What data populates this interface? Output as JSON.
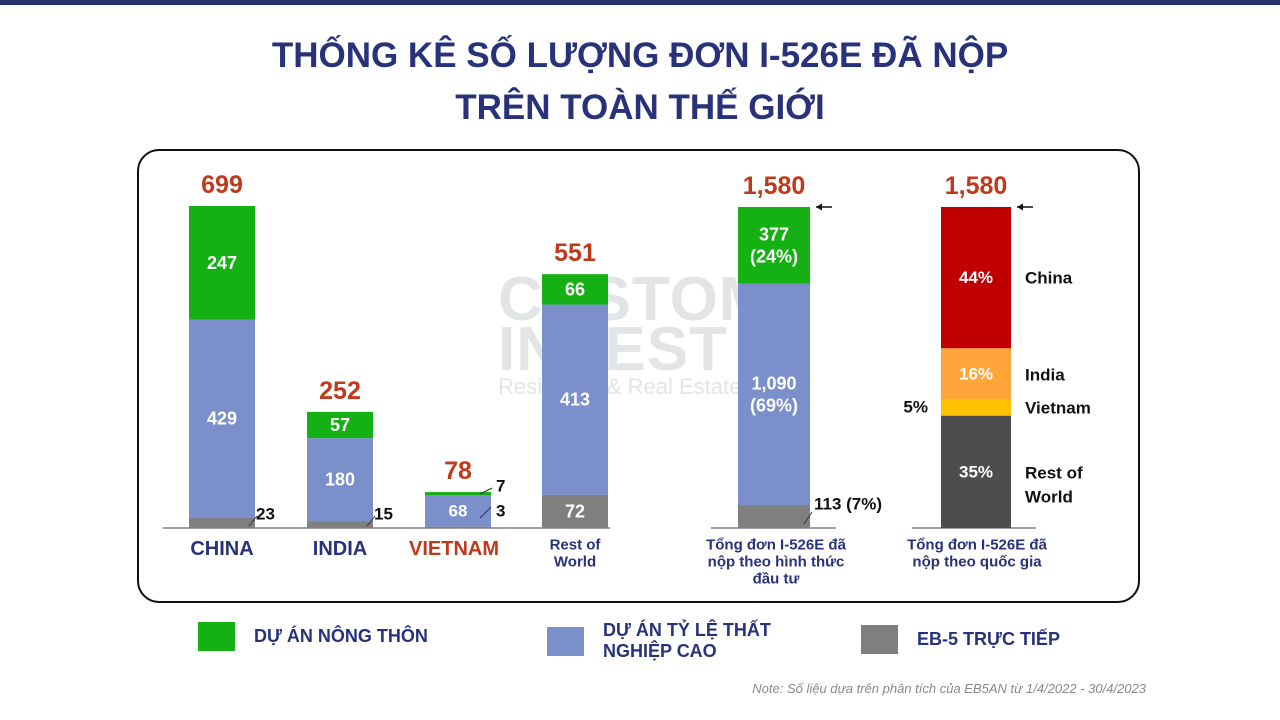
{
  "title": {
    "line1": "THỐNG KÊ SỐ LƯỢNG ĐƠN I-526E ĐÃ NỘP",
    "line2": "TRÊN TOÀN THẾ GIỚI"
  },
  "watermark": {
    "line1": "CUSTOM",
    "line2": "INVEST",
    "line3": "Residency & Real Estate"
  },
  "colors": {
    "rural": "#14b014",
    "high_unemployment": "#7b8fcb",
    "direct": "#7f7f7f",
    "total_label": "#c0391b",
    "navy": "#27327a",
    "china": "#c00000",
    "india": "#ffa53a",
    "vietnam": "#ffc000",
    "rest_of_world": "#4d4d4d"
  },
  "chart_data": [
    {
      "type": "bar",
      "stacked": true,
      "categories": [
        "CHINA",
        "INDIA",
        "VIETNAM",
        "Rest of World"
      ],
      "series": [
        {
          "name": "EB-5 TRỰC TIẾP",
          "values": [
            23,
            15,
            3,
            72
          ]
        },
        {
          "name": "DỰ ÁN TỶ LỆ THẤT NGHIỆP CAO",
          "values": [
            429,
            180,
            68,
            413
          ]
        },
        {
          "name": "DỰ ÁN NÔNG THÔN",
          "values": [
            247,
            57,
            7,
            66
          ]
        }
      ],
      "totals": [
        "699",
        "252",
        "78",
        "551"
      ],
      "segment_labels": [
        [
          "23",
          "429",
          "247"
        ],
        [
          "15",
          "180",
          "57"
        ],
        [
          "3",
          "68",
          "7"
        ],
        [
          "72",
          "413",
          "66"
        ]
      ]
    },
    {
      "type": "bar",
      "stacked": true,
      "categories": [
        "Tổng đơn I-526E đã nộp theo hình thức đầu tư"
      ],
      "series": [
        {
          "name": "EB-5 TRỰC TIẾP",
          "values": [
            113
          ]
        },
        {
          "name": "DỰ ÁN TỶ LỆ THẤT NGHIỆP CAO",
          "values": [
            1090
          ]
        },
        {
          "name": "DỰ ÁN NÔNG THÔN",
          "values": [
            377
          ]
        }
      ],
      "total": "1,580",
      "segment_labels": [
        "113 (7%)",
        [
          "1,090",
          "(69%)"
        ],
        [
          "377",
          "(24%)"
        ]
      ]
    },
    {
      "type": "bar",
      "stacked": true,
      "percent": true,
      "categories": [
        "Tổng đơn I-526E đã nộp theo quốc gia"
      ],
      "series": [
        {
          "name": "Rest of World",
          "values": [
            35
          ]
        },
        {
          "name": "Vietnam",
          "values": [
            5
          ]
        },
        {
          "name": "India",
          "values": [
            16
          ]
        },
        {
          "name": "China",
          "values": [
            44
          ]
        }
      ],
      "total": "1,580",
      "segment_labels": [
        "35%",
        "5%",
        "16%",
        "44%"
      ],
      "side_labels": [
        "Rest of World",
        "Vietnam",
        "India",
        "China"
      ]
    }
  ],
  "category_labels": {
    "china": "CHINA",
    "india": "INDIA",
    "vietnam": "VIETNAM",
    "rest_of_world": [
      "Rest of",
      "World"
    ],
    "by_investment": [
      "Tổng đơn I-526E đã",
      "nộp theo hình thức",
      "đầu tư"
    ],
    "by_country": [
      "Tổng đơn I-526E đã",
      "nộp theo quốc gia"
    ]
  },
  "legend": {
    "rural": "DỰ ÁN NÔNG THÔN",
    "high_unemployment": "DỰ ÁN TỶ LỆ THẤT NGHIỆP CAO",
    "direct": "EB-5 TRỰC TIẾP"
  },
  "note": "Note: Số liệu dựa trên phân tích của EB5AN từ 1/4/2022 - 30/4/2023"
}
